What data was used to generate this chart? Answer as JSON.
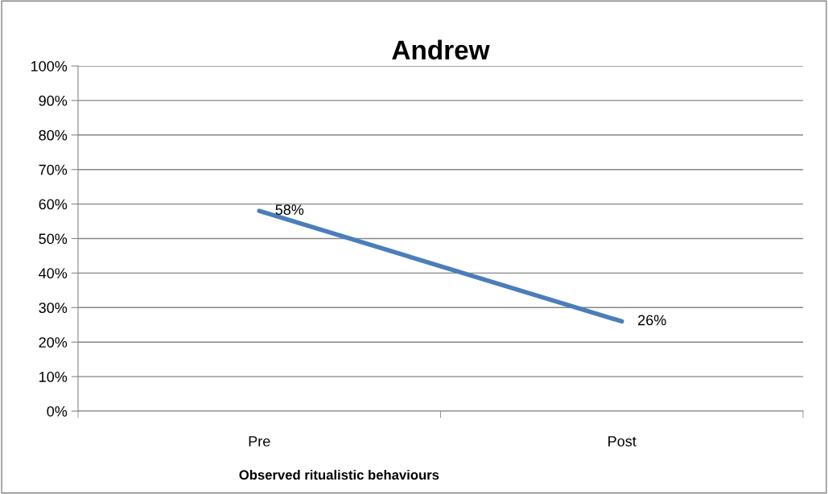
{
  "chart_data": {
    "type": "line",
    "title": "Andrew",
    "xlabel": "Observed ritualistic behaviours",
    "categories": [
      "Pre",
      "Post"
    ],
    "series": [
      {
        "color": "#4a7ebb",
        "values": [
          58,
          26
        ],
        "value_labels": [
          "58%",
          "26%"
        ]
      }
    ],
    "ylim": [
      0,
      100
    ],
    "yticks": [
      {
        "value": 0,
        "label": "0%"
      },
      {
        "value": 10,
        "label": "10%"
      },
      {
        "value": 20,
        "label": "20%"
      },
      {
        "value": 30,
        "label": "30%"
      },
      {
        "value": 40,
        "label": "40%"
      },
      {
        "value": 50,
        "label": "50%"
      },
      {
        "value": 60,
        "label": "60%"
      },
      {
        "value": 70,
        "label": "70%"
      },
      {
        "value": 80,
        "label": "80%"
      },
      {
        "value": 90,
        "label": "90%"
      },
      {
        "value": 100,
        "label": "100%"
      }
    ],
    "grid": "y",
    "legend": false,
    "marker": "none",
    "line_style": "solid"
  }
}
